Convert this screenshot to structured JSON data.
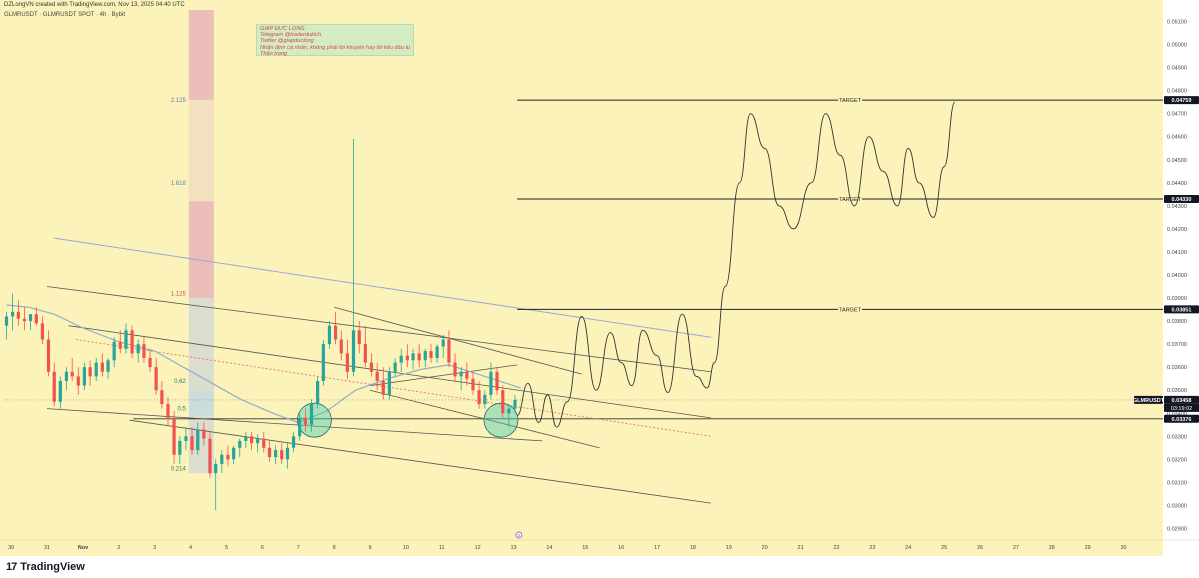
{
  "header": {
    "caption": "DZLongVN created with TradingView.com, Nov 13, 2025 04:40 UTC",
    "symbol_line": "GLMRUSDT · GLMRUSDT SPOT · 4h · Bybit"
  },
  "note": {
    "lines": [
      "GIẤP ĐỨC LONG",
      "Telegram @traderdukich",
      "Twitter @giapduclong",
      "Nhận định cá nhân, không phải lời khuyên hay lời kêu đầu tư",
      "Thận trọng"
    ]
  },
  "footer": {
    "brand": "TradingView",
    "logo_text": "17"
  },
  "colors": {
    "background": "#fbf3b9",
    "up": "#26a69a",
    "down": "#ef5350",
    "ma": "#8eb0cc",
    "channel": "#555555",
    "blue_line": "#9aa7d9",
    "red_dotted": "#e57373",
    "fib_red": "#e8b4b8",
    "fib_peach": "#f2dcc0",
    "fib_grey": "#d5d8d2",
    "fib_blue": "#c2d8e0",
    "circle": "#4cc9b4",
    "note_bg": "#d4ecc4",
    "note_text": "#d04a4a"
  },
  "chart_data": {
    "type": "candlestick",
    "symbol": "GLMRUSDT",
    "timeframe": "4h",
    "exchange": "Bybit",
    "x_ticks": [
      "30",
      "31",
      "Nov",
      "2",
      "3",
      "4",
      "5",
      "6",
      "7",
      "8",
      "9",
      "10",
      "11",
      "12",
      "13",
      "14",
      "15",
      "16",
      "17",
      "18",
      "19",
      "20",
      "21",
      "22",
      "23",
      "24",
      "25",
      "26",
      "27",
      "28",
      "29",
      "30"
    ],
    "y_ticks": [
      "0.05100",
      "0.05000",
      "0.04900",
      "0.04800",
      "0.04700",
      "0.04600",
      "0.04500",
      "0.04400",
      "0.04300",
      "0.04200",
      "0.04100",
      "0.04000",
      "0.03900",
      "0.03800",
      "0.03700",
      "0.03600",
      "0.03500",
      "0.03400",
      "0.03300",
      "0.03200",
      "0.03100",
      "0.03000",
      "0.02900"
    ],
    "y_tick_values": [
      0.051,
      0.05,
      0.049,
      0.048,
      0.047,
      0.046,
      0.045,
      0.044,
      0.043,
      0.042,
      0.041,
      0.04,
      0.039,
      0.038,
      0.037,
      0.036,
      0.035,
      0.034,
      0.033,
      0.032,
      0.031,
      0.03,
      0.029
    ],
    "ylim": [
      0.0285,
      0.0515
    ],
    "x_range_days": [
      -1.2,
      31.1
    ],
    "price_labels": [
      {
        "text": "0.04759",
        "value": 0.04759
      },
      {
        "text": "0.04330",
        "value": 0.0433
      },
      {
        "text": "0.03851",
        "value": 0.03851
      },
      {
        "text": "0.03458",
        "value": 0.03458
      },
      {
        "text": "0.03376",
        "value": 0.03376
      }
    ],
    "current_price": {
      "symbol_label": "GLMRUSDT",
      "price": "0.03458",
      "countdown": "03:19:02"
    },
    "targets": [
      {
        "label": "TARGET",
        "price": 0.04759,
        "x_start": 13.1,
        "x_end": 31.1
      },
      {
        "label": "TARGET",
        "price": 0.0433,
        "x_start": 13.1,
        "x_end": 31.1
      },
      {
        "label": "TARGET",
        "price": 0.03851,
        "x_start": 13.1,
        "x_end": 31.1
      }
    ],
    "support_line": {
      "price": 0.03376,
      "x_start": 2.4,
      "x_end": 31.1
    },
    "fib_levels": [
      {
        "label": "2.125",
        "price": 0.0476
      },
      {
        "label": "1.618",
        "price": 0.044
      },
      {
        "label": "1.125",
        "price": 0.0392
      },
      {
        "label": "0.62",
        "price": 0.0354
      },
      {
        "label": "0.5",
        "price": 0.0342
      },
      {
        "label": "0.214",
        "price": 0.0316
      }
    ],
    "fib_zones": [
      {
        "from": 0.0515,
        "to": 0.0476,
        "color": "fib_red"
      },
      {
        "from": 0.0476,
        "to": 0.0432,
        "color": "fib_peach"
      },
      {
        "from": 0.0432,
        "to": 0.039,
        "color": "fib_red"
      },
      {
        "from": 0.039,
        "to": 0.035,
        "color": "fib_grey"
      },
      {
        "from": 0.035,
        "to": 0.0339,
        "color": "fib_blue"
      },
      {
        "from": 0.0339,
        "to": 0.0314,
        "color": "fib_grey"
      }
    ],
    "fib_zone_x": [
      3.95,
      4.65
    ],
    "candles": [
      {
        "t": -1.13,
        "o": 0.0378,
        "h": 0.0384,
        "l": 0.0372,
        "c": 0.0382
      },
      {
        "t": -0.96,
        "o": 0.0382,
        "h": 0.0392,
        "l": 0.0376,
        "c": 0.0384
      },
      {
        "t": -0.8,
        "o": 0.0384,
        "h": 0.0389,
        "l": 0.0378,
        "c": 0.0381
      },
      {
        "t": -0.63,
        "o": 0.0381,
        "h": 0.0386,
        "l": 0.0376,
        "c": 0.038
      },
      {
        "t": -0.46,
        "o": 0.038,
        "h": 0.0383,
        "l": 0.0376,
        "c": 0.0383
      },
      {
        "t": -0.3,
        "o": 0.0383,
        "h": 0.0386,
        "l": 0.0378,
        "c": 0.0379
      },
      {
        "t": -0.13,
        "o": 0.0379,
        "h": 0.0382,
        "l": 0.037,
        "c": 0.0372
      },
      {
        "t": 0.04,
        "o": 0.0372,
        "h": 0.0376,
        "l": 0.0356,
        "c": 0.0358
      },
      {
        "t": 0.2,
        "o": 0.0358,
        "h": 0.0362,
        "l": 0.0343,
        "c": 0.0345
      },
      {
        "t": 0.37,
        "o": 0.0345,
        "h": 0.0356,
        "l": 0.0342,
        "c": 0.0354
      },
      {
        "t": 0.54,
        "o": 0.0354,
        "h": 0.036,
        "l": 0.035,
        "c": 0.0358
      },
      {
        "t": 0.7,
        "o": 0.0358,
        "h": 0.0364,
        "l": 0.0354,
        "c": 0.0356
      },
      {
        "t": 0.87,
        "o": 0.0356,
        "h": 0.036,
        "l": 0.0348,
        "c": 0.0352
      },
      {
        "t": 1.04,
        "o": 0.0352,
        "h": 0.0362,
        "l": 0.035,
        "c": 0.036
      },
      {
        "t": 1.2,
        "o": 0.036,
        "h": 0.0363,
        "l": 0.0352,
        "c": 0.0356
      },
      {
        "t": 1.37,
        "o": 0.0356,
        "h": 0.0364,
        "l": 0.0354,
        "c": 0.0362
      },
      {
        "t": 1.54,
        "o": 0.0362,
        "h": 0.0366,
        "l": 0.0356,
        "c": 0.0358
      },
      {
        "t": 1.7,
        "o": 0.0358,
        "h": 0.0364,
        "l": 0.0355,
        "c": 0.0363
      },
      {
        "t": 1.87,
        "o": 0.0363,
        "h": 0.0373,
        "l": 0.036,
        "c": 0.0371
      },
      {
        "t": 2.04,
        "o": 0.0371,
        "h": 0.0376,
        "l": 0.0366,
        "c": 0.0368
      },
      {
        "t": 2.2,
        "o": 0.0368,
        "h": 0.0379,
        "l": 0.0366,
        "c": 0.0376
      },
      {
        "t": 2.37,
        "o": 0.0376,
        "h": 0.0378,
        "l": 0.0364,
        "c": 0.0366
      },
      {
        "t": 2.54,
        "o": 0.0366,
        "h": 0.0372,
        "l": 0.0362,
        "c": 0.037
      },
      {
        "t": 2.7,
        "o": 0.037,
        "h": 0.0373,
        "l": 0.0362,
        "c": 0.0364
      },
      {
        "t": 2.87,
        "o": 0.0364,
        "h": 0.0368,
        "l": 0.0358,
        "c": 0.036
      },
      {
        "t": 3.04,
        "o": 0.036,
        "h": 0.0364,
        "l": 0.0348,
        "c": 0.035
      },
      {
        "t": 3.2,
        "o": 0.035,
        "h": 0.0354,
        "l": 0.0342,
        "c": 0.0344
      },
      {
        "t": 3.37,
        "o": 0.0344,
        "h": 0.0347,
        "l": 0.0335,
        "c": 0.0338
      },
      {
        "t": 3.54,
        "o": 0.0338,
        "h": 0.0341,
        "l": 0.0318,
        "c": 0.0322
      },
      {
        "t": 3.7,
        "o": 0.0322,
        "h": 0.033,
        "l": 0.0318,
        "c": 0.0328
      },
      {
        "t": 3.87,
        "o": 0.0328,
        "h": 0.0334,
        "l": 0.0324,
        "c": 0.033
      },
      {
        "t": 4.04,
        "o": 0.033,
        "h": 0.0334,
        "l": 0.0322,
        "c": 0.0324
      },
      {
        "t": 4.2,
        "o": 0.0324,
        "h": 0.0336,
        "l": 0.0322,
        "c": 0.0333
      },
      {
        "t": 4.37,
        "o": 0.0333,
        "h": 0.0336,
        "l": 0.0326,
        "c": 0.0329
      },
      {
        "t": 4.54,
        "o": 0.0329,
        "h": 0.0332,
        "l": 0.0312,
        "c": 0.0314
      },
      {
        "t": 4.7,
        "o": 0.0314,
        "h": 0.032,
        "l": 0.0298,
        "c": 0.0318
      },
      {
        "t": 4.87,
        "o": 0.0318,
        "h": 0.0324,
        "l": 0.0314,
        "c": 0.0322
      },
      {
        "t": 5.04,
        "o": 0.0322,
        "h": 0.0326,
        "l": 0.0317,
        "c": 0.032
      },
      {
        "t": 5.2,
        "o": 0.032,
        "h": 0.0326,
        "l": 0.0318,
        "c": 0.0325
      },
      {
        "t": 5.37,
        "o": 0.0325,
        "h": 0.0329,
        "l": 0.0321,
        "c": 0.0328
      },
      {
        "t": 5.54,
        "o": 0.0328,
        "h": 0.0332,
        "l": 0.0325,
        "c": 0.033
      },
      {
        "t": 5.7,
        "o": 0.033,
        "h": 0.0332,
        "l": 0.0324,
        "c": 0.0327
      },
      {
        "t": 5.87,
        "o": 0.0327,
        "h": 0.0331,
        "l": 0.0323,
        "c": 0.0329
      },
      {
        "t": 6.04,
        "o": 0.0329,
        "h": 0.0332,
        "l": 0.0323,
        "c": 0.0325
      },
      {
        "t": 6.2,
        "o": 0.0325,
        "h": 0.0328,
        "l": 0.0319,
        "c": 0.0321
      },
      {
        "t": 6.37,
        "o": 0.0321,
        "h": 0.0326,
        "l": 0.0318,
        "c": 0.0324
      },
      {
        "t": 6.54,
        "o": 0.0324,
        "h": 0.0327,
        "l": 0.0318,
        "c": 0.032
      },
      {
        "t": 6.7,
        "o": 0.032,
        "h": 0.0327,
        "l": 0.0316,
        "c": 0.0325
      },
      {
        "t": 6.87,
        "o": 0.0325,
        "h": 0.0332,
        "l": 0.0323,
        "c": 0.033
      },
      {
        "t": 7.04,
        "o": 0.033,
        "h": 0.034,
        "l": 0.0328,
        "c": 0.0338
      },
      {
        "t": 7.2,
        "o": 0.0338,
        "h": 0.0342,
        "l": 0.0332,
        "c": 0.0335
      },
      {
        "t": 7.37,
        "o": 0.0335,
        "h": 0.0346,
        "l": 0.0332,
        "c": 0.0344
      },
      {
        "t": 7.54,
        "o": 0.0344,
        "h": 0.0356,
        "l": 0.0342,
        "c": 0.0354
      },
      {
        "t": 7.7,
        "o": 0.0354,
        "h": 0.0372,
        "l": 0.0352,
        "c": 0.037
      },
      {
        "t": 7.87,
        "o": 0.037,
        "h": 0.038,
        "l": 0.0368,
        "c": 0.0378
      },
      {
        "t": 8.04,
        "o": 0.0378,
        "h": 0.0384,
        "l": 0.037,
        "c": 0.0372
      },
      {
        "t": 8.2,
        "o": 0.0372,
        "h": 0.0376,
        "l": 0.0363,
        "c": 0.0366
      },
      {
        "t": 8.37,
        "o": 0.0366,
        "h": 0.0372,
        "l": 0.0355,
        "c": 0.0358
      },
      {
        "t": 8.54,
        "o": 0.0358,
        "h": 0.0459,
        "l": 0.0356,
        "c": 0.0376
      },
      {
        "t": 8.7,
        "o": 0.0376,
        "h": 0.038,
        "l": 0.0366,
        "c": 0.037
      },
      {
        "t": 8.87,
        "o": 0.037,
        "h": 0.0378,
        "l": 0.036,
        "c": 0.0362
      },
      {
        "t": 9.04,
        "o": 0.0362,
        "h": 0.0366,
        "l": 0.0356,
        "c": 0.0358
      },
      {
        "t": 9.2,
        "o": 0.0358,
        "h": 0.0362,
        "l": 0.035,
        "c": 0.0354
      },
      {
        "t": 9.37,
        "o": 0.0354,
        "h": 0.036,
        "l": 0.0346,
        "c": 0.0348
      },
      {
        "t": 9.54,
        "o": 0.0348,
        "h": 0.036,
        "l": 0.0346,
        "c": 0.0358
      },
      {
        "t": 9.7,
        "o": 0.0358,
        "h": 0.0364,
        "l": 0.0356,
        "c": 0.0362
      },
      {
        "t": 9.87,
        "o": 0.0362,
        "h": 0.0368,
        "l": 0.0358,
        "c": 0.0365
      },
      {
        "t": 10.04,
        "o": 0.0365,
        "h": 0.037,
        "l": 0.036,
        "c": 0.0363
      },
      {
        "t": 10.2,
        "o": 0.0363,
        "h": 0.0368,
        "l": 0.0359,
        "c": 0.0366
      },
      {
        "t": 10.37,
        "o": 0.0366,
        "h": 0.037,
        "l": 0.036,
        "c": 0.0363
      },
      {
        "t": 10.54,
        "o": 0.0363,
        "h": 0.0368,
        "l": 0.036,
        "c": 0.0367
      },
      {
        "t": 10.7,
        "o": 0.0367,
        "h": 0.037,
        "l": 0.0362,
        "c": 0.0364
      },
      {
        "t": 10.87,
        "o": 0.0364,
        "h": 0.037,
        "l": 0.0362,
        "c": 0.0369
      },
      {
        "t": 11.04,
        "o": 0.0369,
        "h": 0.0374,
        "l": 0.0364,
        "c": 0.0372
      },
      {
        "t": 11.2,
        "o": 0.0372,
        "h": 0.0376,
        "l": 0.036,
        "c": 0.0362
      },
      {
        "t": 11.37,
        "o": 0.0362,
        "h": 0.0366,
        "l": 0.0354,
        "c": 0.0356
      },
      {
        "t": 11.54,
        "o": 0.0356,
        "h": 0.036,
        "l": 0.035,
        "c": 0.0358
      },
      {
        "t": 11.7,
        "o": 0.0358,
        "h": 0.0362,
        "l": 0.0352,
        "c": 0.0355
      },
      {
        "t": 11.87,
        "o": 0.0355,
        "h": 0.0358,
        "l": 0.0348,
        "c": 0.035
      },
      {
        "t": 12.04,
        "o": 0.035,
        "h": 0.0354,
        "l": 0.0342,
        "c": 0.0344
      },
      {
        "t": 12.2,
        "o": 0.0344,
        "h": 0.035,
        "l": 0.0342,
        "c": 0.0348
      },
      {
        "t": 12.37,
        "o": 0.0348,
        "h": 0.0362,
        "l": 0.0346,
        "c": 0.0358
      },
      {
        "t": 12.54,
        "o": 0.0358,
        "h": 0.036,
        "l": 0.0348,
        "c": 0.035
      },
      {
        "t": 12.7,
        "o": 0.035,
        "h": 0.0352,
        "l": 0.0338,
        "c": 0.034
      },
      {
        "t": 12.87,
        "o": 0.034,
        "h": 0.0344,
        "l": 0.0334,
        "c": 0.0342
      },
      {
        "t": 13.04,
        "o": 0.0342,
        "h": 0.0348,
        "l": 0.034,
        "c": 0.03458
      }
    ],
    "moving_average": [
      [
        -1.13,
        0.0387
      ],
      [
        -0.5,
        0.0386
      ],
      [
        0.2,
        0.0383
      ],
      [
        1.0,
        0.0377
      ],
      [
        2.0,
        0.0371
      ],
      [
        3.0,
        0.0367
      ],
      [
        3.8,
        0.036
      ],
      [
        4.6,
        0.0353
      ],
      [
        5.4,
        0.0346
      ],
      [
        6.3,
        0.034
      ],
      [
        7.0,
        0.0336
      ],
      [
        7.8,
        0.0341
      ],
      [
        8.6,
        0.035
      ],
      [
        9.5,
        0.0355
      ],
      [
        10.4,
        0.0359
      ],
      [
        11.2,
        0.0361
      ],
      [
        11.8,
        0.0358
      ],
      [
        12.4,
        0.0355
      ],
      [
        13.2,
        0.0351
      ]
    ],
    "channel_lines": [
      {
        "x1": 0.0,
        "y1": 0.0395,
        "x2": 18.5,
        "y2": 0.0358
      },
      {
        "x1": 0.0,
        "y1": 0.0342,
        "x2": 13.8,
        "y2": 0.0328
      },
      {
        "x1": 0.6,
        "y1": 0.0378,
        "x2": 18.5,
        "y2": 0.0338
      },
      {
        "x1": 2.3,
        "y1": 0.0337,
        "x2": 18.5,
        "y2": 0.0301
      },
      {
        "x1": 8.0,
        "y1": 0.0386,
        "x2": 14.9,
        "y2": 0.0357
      },
      {
        "x1": 9.0,
        "y1": 0.035,
        "x2": 15.4,
        "y2": 0.0325
      },
      {
        "x1": 9.0,
        "y1": 0.0352,
        "x2": 13.1,
        "y2": 0.0361
      }
    ],
    "blue_line": {
      "x1": 0.2,
      "y1": 0.0416,
      "x2": 18.5,
      "y2": 0.0373
    },
    "red_dotted_line": {
      "x1": 0.8,
      "y1": 0.0372,
      "x2": 18.5,
      "y2": 0.033
    },
    "circles": [
      {
        "t": 7.45,
        "price": 0.0337
      },
      {
        "t": 12.65,
        "price": 0.0337
      }
    ],
    "projection_path": [
      [
        13.1,
        0.0339
      ],
      [
        13.4,
        0.0353
      ],
      [
        13.7,
        0.0336
      ],
      [
        13.95,
        0.0348
      ],
      [
        14.2,
        0.0334
      ],
      [
        14.5,
        0.0345
      ],
      [
        14.9,
        0.0382
      ],
      [
        15.3,
        0.035
      ],
      [
        15.7,
        0.0375
      ],
      [
        16.0,
        0.0362
      ],
      [
        16.3,
        0.0352
      ],
      [
        16.6,
        0.0376
      ],
      [
        17.0,
        0.0365
      ],
      [
        17.3,
        0.0349
      ],
      [
        17.7,
        0.0383
      ],
      [
        18.1,
        0.0356
      ],
      [
        18.4,
        0.0351
      ],
      [
        18.6,
        0.0362
      ],
      [
        18.9,
        0.0395
      ],
      [
        19.3,
        0.044
      ],
      [
        19.6,
        0.047
      ],
      [
        20.0,
        0.0455
      ],
      [
        20.4,
        0.043
      ],
      [
        20.8,
        0.042
      ],
      [
        21.3,
        0.044
      ],
      [
        21.7,
        0.047
      ],
      [
        22.1,
        0.0452
      ],
      [
        22.5,
        0.043
      ],
      [
        22.9,
        0.046
      ],
      [
        23.3,
        0.0445
      ],
      [
        23.7,
        0.043
      ],
      [
        24.0,
        0.0455
      ],
      [
        24.3,
        0.044
      ],
      [
        24.7,
        0.0425
      ],
      [
        25.0,
        0.0447
      ],
      [
        25.3,
        0.0475
      ]
    ],
    "time_marker": {
      "t": 13.15,
      "label": "0"
    }
  }
}
